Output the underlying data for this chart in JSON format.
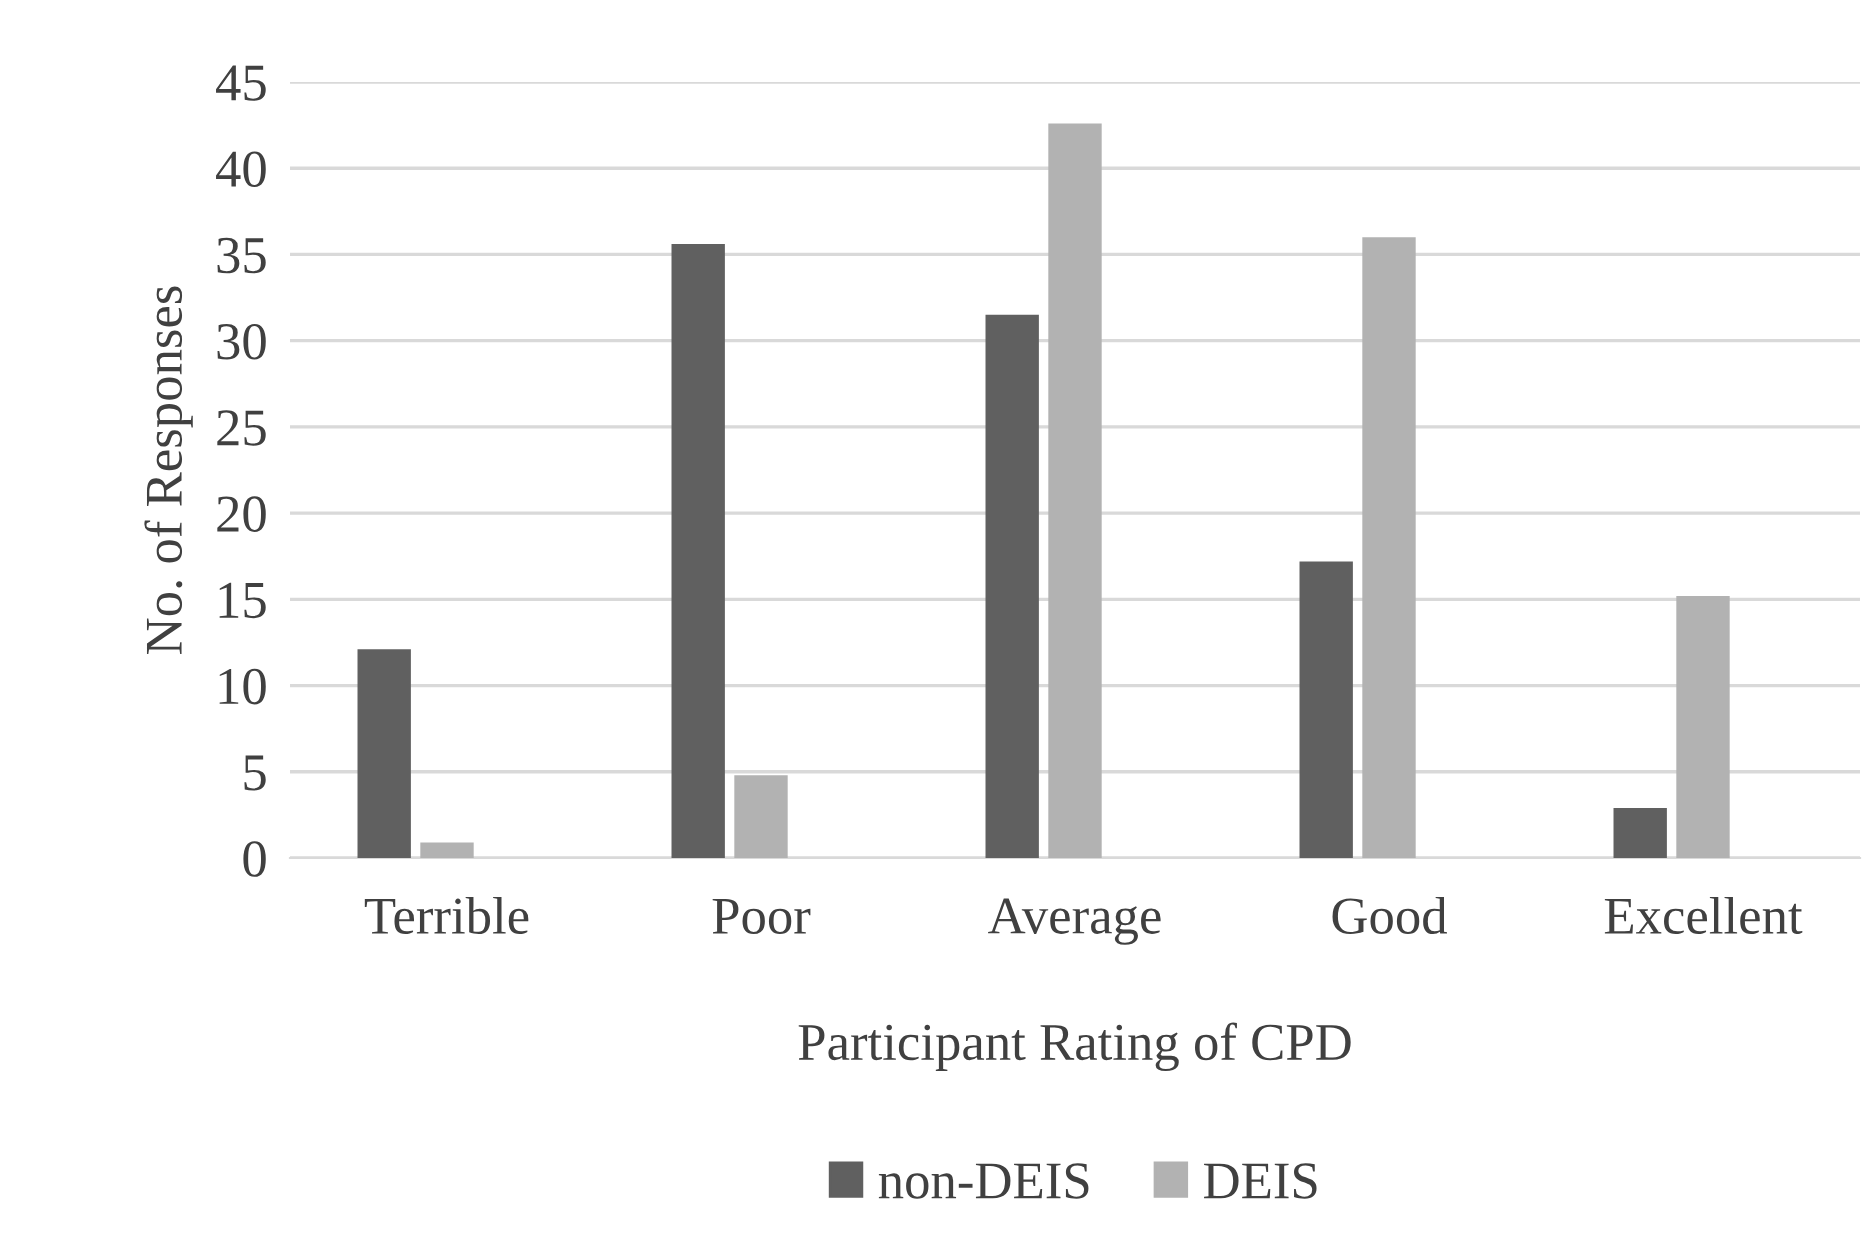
{
  "chart_data": {
    "type": "bar",
    "xlabel": "Participant Rating of CPD",
    "ylabel": "No. of Responses",
    "categories": [
      "Terrible",
      "Poor",
      "Average",
      "Good",
      "Excellent"
    ],
    "series": [
      {
        "name": "non-DEIS",
        "color": "#606060",
        "values": [
          12.1,
          35.6,
          31.5,
          17.2,
          2.9
        ]
      },
      {
        "name": "DEIS",
        "color": "#b2b2b2",
        "values": [
          0.9,
          4.8,
          42.6,
          36.0,
          15.2
        ]
      }
    ],
    "ylim": [
      0,
      45
    ],
    "yticks": [
      0,
      5,
      10,
      15,
      20,
      25,
      30,
      35,
      40,
      45
    ],
    "grid": "y",
    "legend": "bottom"
  }
}
